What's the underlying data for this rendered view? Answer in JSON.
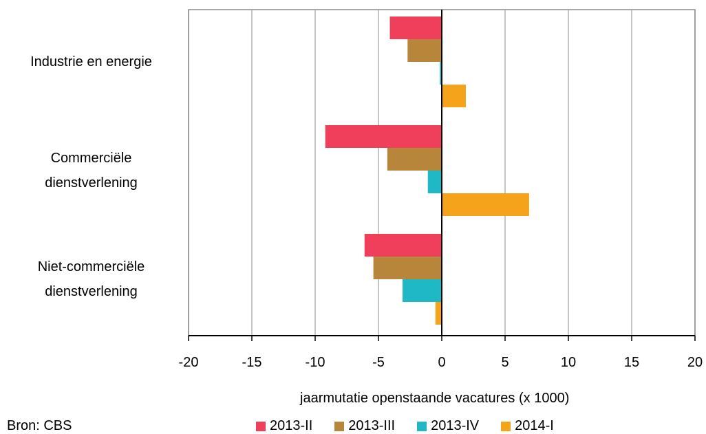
{
  "chart_data": {
    "type": "bar",
    "orientation": "horizontal",
    "categories": [
      "Industrie en energie",
      "Commerciële\ndienstverlening",
      "Niet-commerciële\ndienstverlening"
    ],
    "series": [
      {
        "name": "2013-II",
        "color": "#ef3f5a",
        "values": [
          -4.1,
          -9.2,
          -6.1
        ]
      },
      {
        "name": "2013-III",
        "color": "#b8863b",
        "values": [
          -2.7,
          -4.3,
          -5.4
        ]
      },
      {
        "name": "2013-IV",
        "color": "#1fb8c6",
        "values": [
          -0.15,
          -1.1,
          -3.1
        ]
      },
      {
        "name": "2014-I",
        "color": "#f5a31a",
        "values": [
          1.9,
          6.9,
          -0.5
        ]
      }
    ],
    "xlim": [
      -20,
      20
    ],
    "xticks": [
      -20,
      -15,
      -10,
      -5,
      0,
      5,
      10,
      15,
      20
    ],
    "xlabel": "jaarmutatie openstaande vacatures (x 1000)",
    "grid": true,
    "legend_position": "bottom"
  },
  "source": "Bron: CBS"
}
